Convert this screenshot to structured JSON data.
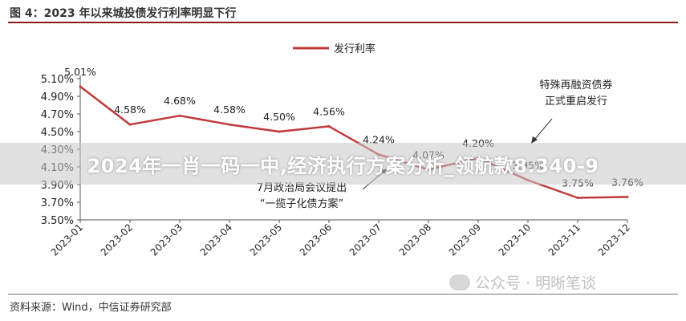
{
  "figure_title": "图 4：2023 年以来城投债发行利率明显下行",
  "source_note": "资料来源：Wind，中信证券研究部",
  "overlay_text": "2024年一肖一码一中,经济执行方案分析_领航款8.340-9",
  "watermark_text": "公众号 · 明晰笔谈",
  "colors": {
    "line": "#c0393b",
    "rule": "#8a1c1c",
    "axis": "#555555"
  },
  "annotations": [
    {
      "lines": [
        "特殊再融资债券",
        "正式重启发行"
      ],
      "target_index": 9
    },
    {
      "lines": [
        "7月政治局会议提出",
        "“一揽子化债方案”"
      ],
      "target_index": 6
    }
  ],
  "chart_data": {
    "type": "line",
    "categories": [
      "2023-01",
      "2023-02",
      "2023-03",
      "2023-04",
      "2023-05",
      "2023-06",
      "2023-07",
      "2023-08",
      "2023-09",
      "2023-10",
      "2023-11",
      "2023-12"
    ],
    "series": [
      {
        "name": "发行利率",
        "values": [
          5.01,
          4.58,
          4.68,
          4.58,
          4.5,
          4.56,
          4.24,
          4.07,
          4.2,
          3.95,
          3.75,
          3.76
        ]
      }
    ],
    "data_labels": [
      "5.01%",
      "4.58%",
      "4.68%",
      "4.58%",
      "4.50%",
      "4.56%",
      "4.24%",
      "4.07%",
      "4.20%",
      "3.95%",
      "3.75%",
      "3.76%"
    ],
    "yticks": [
      "5.10%",
      "4.90%",
      "4.70%",
      "4.50%",
      "4.30%",
      "4.10%",
      "3.90%",
      "3.70%",
      "3.50%"
    ],
    "ylim": [
      3.5,
      5.1
    ],
    "legend_position": "top-center",
    "grid": false
  }
}
